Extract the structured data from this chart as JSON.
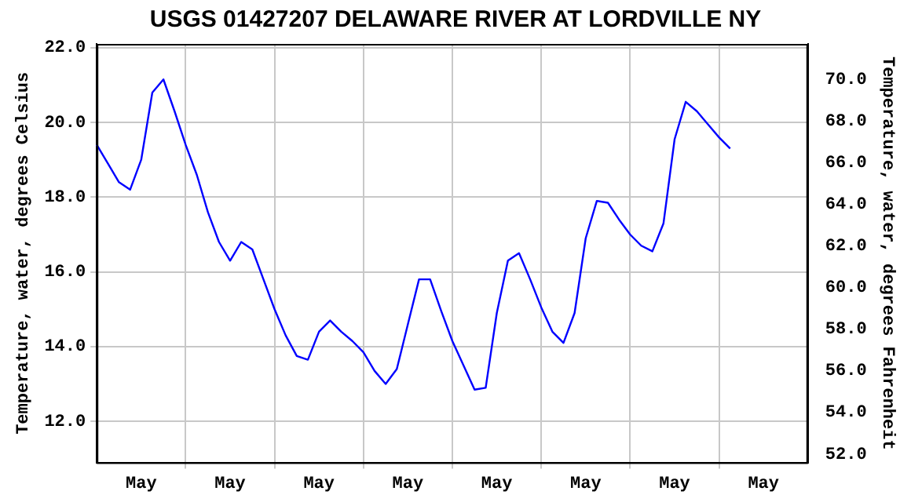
{
  "chart_data": {
    "type": "line",
    "title": "USGS 01427207 DELAWARE RIVER AT LORDVILLE NY",
    "ylabel": "Temperature, water, degrees Celsius",
    "y2label": "Temperature, water, degrees Fahrenheit",
    "categories": [
      null,
      null,
      null,
      null,
      "May",
      null,
      null,
      null,
      null,
      null,
      null,
      null,
      "May",
      null,
      null,
      null,
      null,
      null,
      null,
      null,
      "May",
      null,
      null,
      null,
      null,
      null,
      null,
      null,
      "May",
      null,
      null,
      null,
      null,
      null,
      null,
      null,
      "May",
      null,
      null,
      null,
      null,
      null,
      null,
      null,
      "May",
      null,
      null,
      null,
      null,
      null,
      null,
      null,
      "May",
      null,
      null,
      null,
      null,
      null,
      null,
      null,
      "May",
      null,
      null,
      null,
      null
    ],
    "ylim": [
      10.9,
      22.1
    ],
    "yticks": [
      {
        "value": 12,
        "label": "12.0"
      },
      {
        "value": 14,
        "label": "14.0"
      },
      {
        "value": 16,
        "label": "16.0"
      },
      {
        "value": 18,
        "label": "18.0"
      },
      {
        "value": 20,
        "label": "20.0"
      },
      {
        "value": 22,
        "label": "22.0"
      }
    ],
    "y2lim": [
      51.6,
      71.7
    ],
    "y2ticks": [
      {
        "value": 52,
        "label": "52.0"
      },
      {
        "value": 54,
        "label": "54.0"
      },
      {
        "value": 56,
        "label": "56.0"
      },
      {
        "value": 58,
        "label": "58.0"
      },
      {
        "value": 60,
        "label": "60.0"
      },
      {
        "value": 62,
        "label": "62.0"
      },
      {
        "value": 64,
        "label": "64.0"
      },
      {
        "value": 66,
        "label": "66.0"
      },
      {
        "value": 68,
        "label": "68.0"
      },
      {
        "value": 70,
        "label": "70.0"
      }
    ],
    "grid": true,
    "legend": false,
    "marker": "none",
    "line_style": "solid",
    "series": [
      {
        "color": "#0000ff",
        "values": [
          19.4,
          18.9,
          18.4,
          18.2,
          19.0,
          20.8,
          21.15,
          20.3,
          19.4,
          18.6,
          17.6,
          16.8,
          16.3,
          16.8,
          16.6,
          15.8,
          15.0,
          14.3,
          13.75,
          13.65,
          14.4,
          14.7,
          14.4,
          14.15,
          13.85,
          13.35,
          13.0,
          13.4,
          14.6,
          15.8,
          15.8,
          14.95,
          14.15,
          13.5,
          12.85,
          12.9,
          14.9,
          16.3,
          16.5,
          15.8,
          15.05,
          14.4,
          14.1,
          14.9,
          16.9,
          17.9,
          17.85,
          17.4,
          17.0,
          16.7,
          16.55,
          17.3,
          19.55,
          20.55,
          20.3,
          19.95,
          19.6,
          19.3,
          null,
          null,
          null,
          null,
          null,
          null,
          null
        ]
      }
    ]
  }
}
